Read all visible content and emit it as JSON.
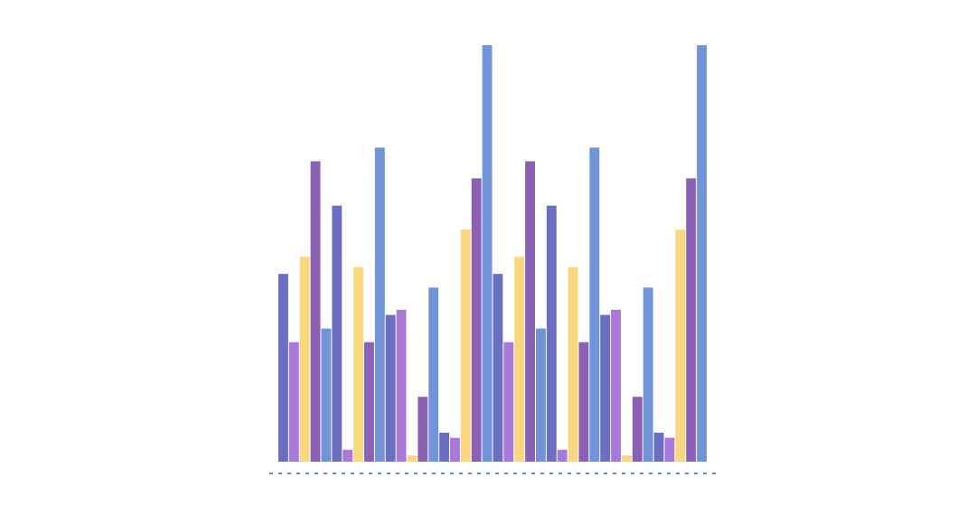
{
  "chart_data": {
    "type": "bar",
    "title": "",
    "xlabel": "",
    "ylabel": "",
    "ylim": [
      0,
      122
    ],
    "grid": false,
    "legend": "none",
    "baseline_style": "dashed",
    "baseline_color": "#5b8bd6",
    "colors": [
      "#6b6fc2",
      "#a978d9",
      "#f9d77e",
      "#8b62b3",
      "#7194d9"
    ],
    "values": [
      55,
      35,
      60,
      88,
      39,
      75,
      3.5,
      57,
      35,
      92,
      43,
      44.5,
      1.8,
      19,
      51,
      8.5,
      7,
      68,
      83,
      122,
      55,
      35,
      60,
      88,
      39,
      75,
      3.5,
      57,
      35,
      92,
      43,
      44.5,
      1.8,
      19,
      51,
      8.5,
      7,
      68,
      83,
      122
    ]
  }
}
